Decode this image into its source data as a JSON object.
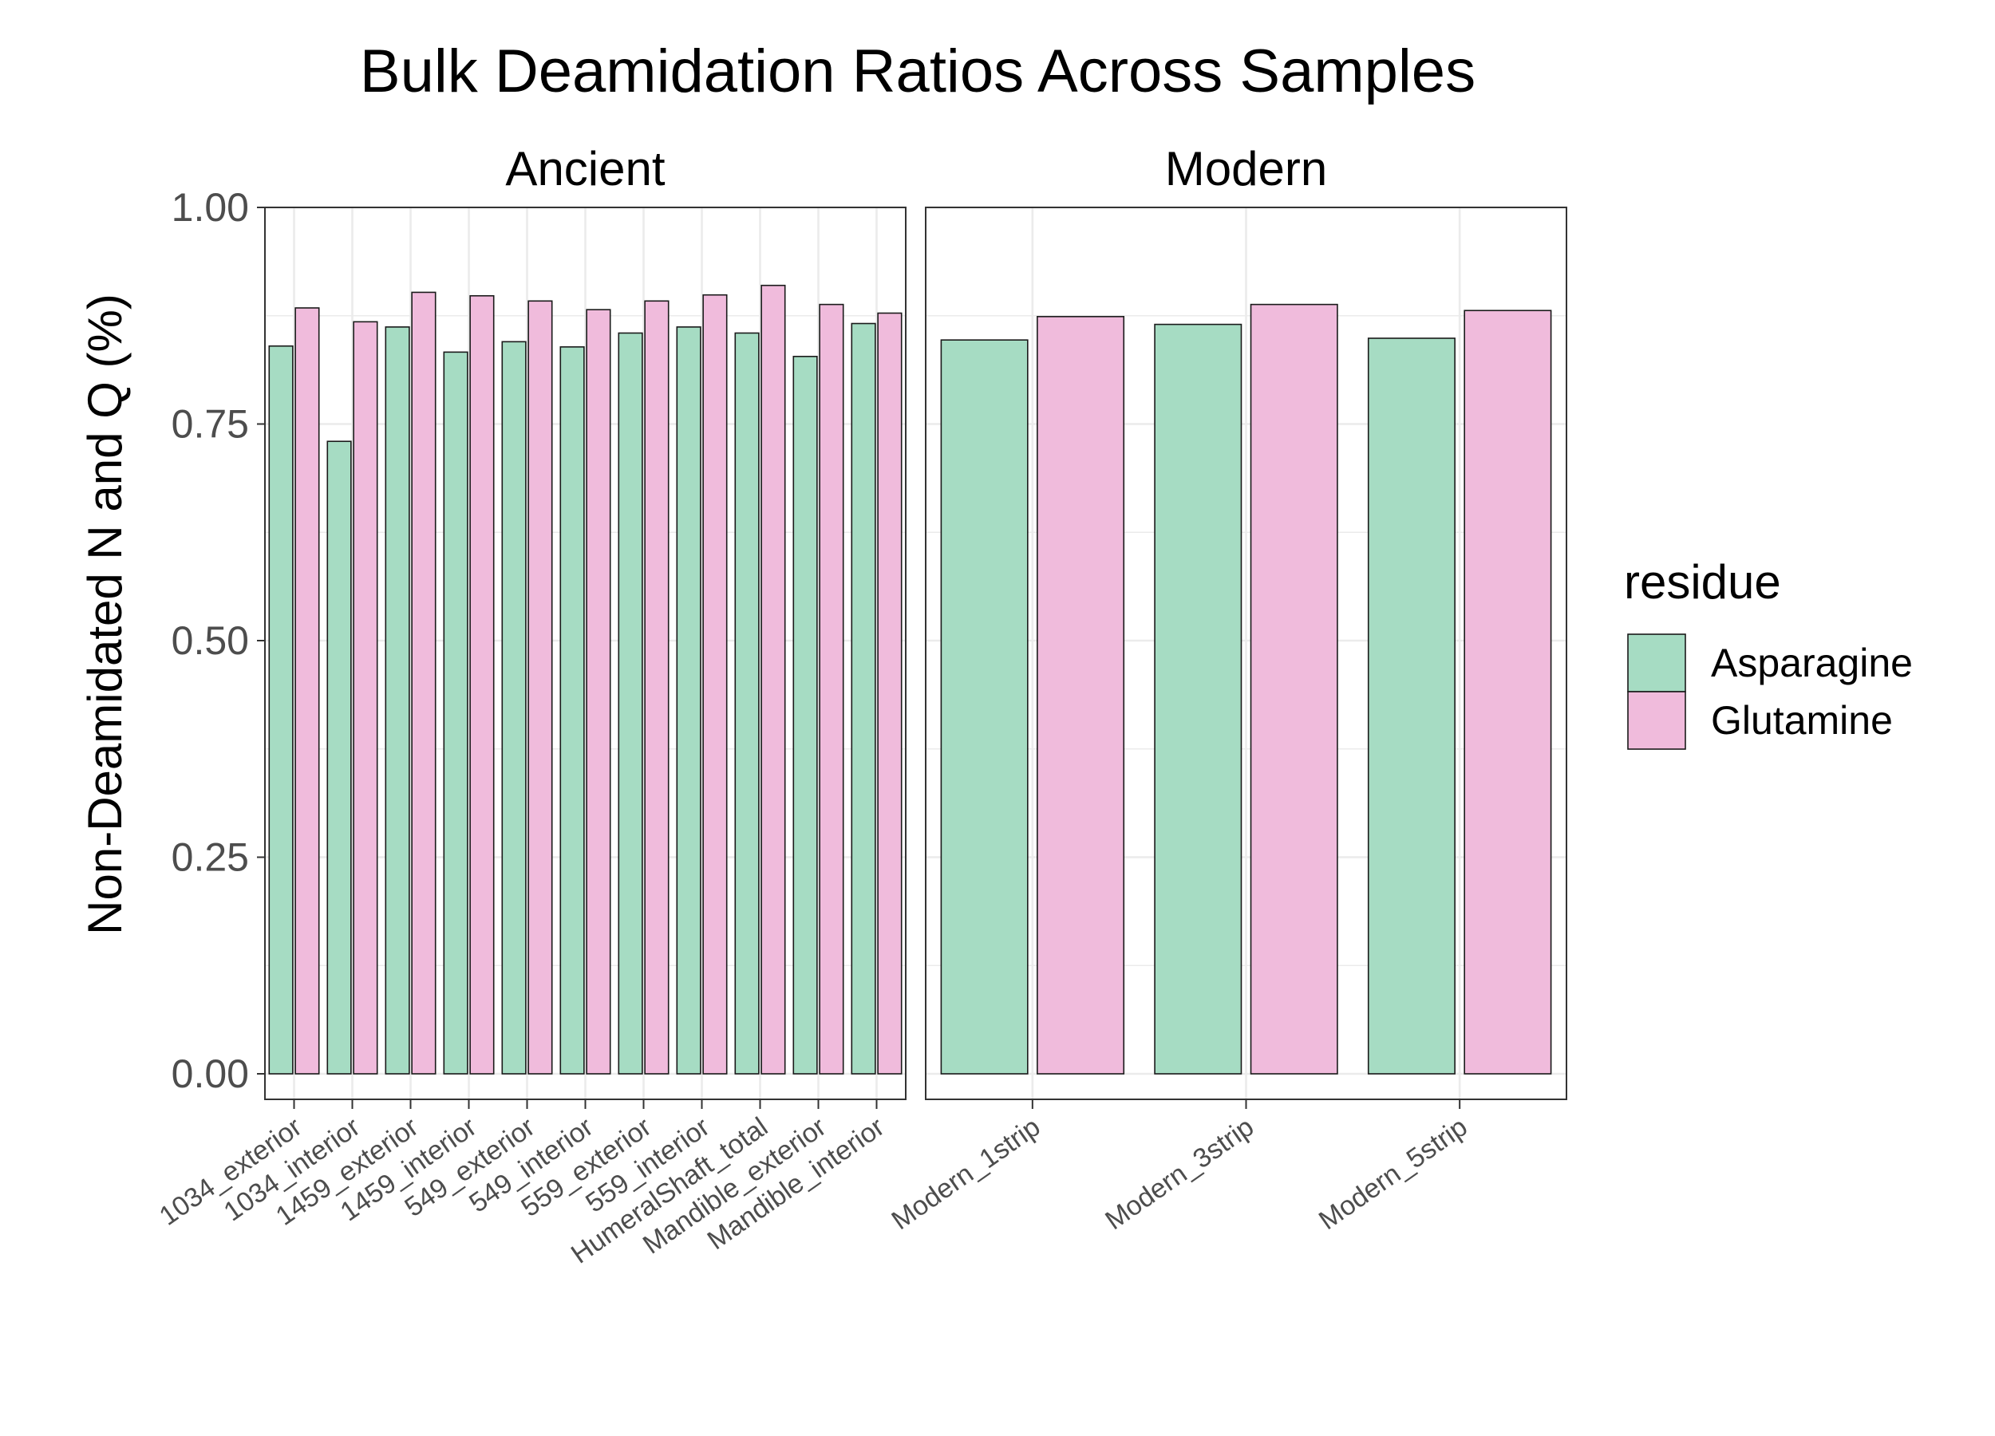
{
  "chart_data": {
    "type": "bar",
    "title": "Bulk Deamidation Ratios Across Samples",
    "ylabel": "Non-Deamidated N and Q (%)",
    "xlabel": "",
    "ylim": [
      0,
      1
    ],
    "yticks": [
      "0.00",
      "0.25",
      "0.50",
      "0.75",
      "1.00"
    ],
    "grid": true,
    "legend": {
      "title": "residue",
      "position": "right",
      "entries": [
        {
          "name": "Asparagine",
          "color": "#a6dcc3"
        },
        {
          "name": "Glutamine",
          "color": "#f0bbdc"
        }
      ]
    },
    "facets": [
      {
        "name": "Ancient",
        "categories": [
          "1034_exterior",
          "1034_interior",
          "1459_exterior",
          "1459_interior",
          "549_exterior",
          "549_interior",
          "559_exterior",
          "559_interior",
          "HumeralShaft_total",
          "Mandible_exterior",
          "Mandible_interior"
        ],
        "series": [
          {
            "name": "Asparagine",
            "values": [
              0.84,
              0.73,
              0.862,
              0.833,
              0.845,
              0.839,
              0.855,
              0.862,
              0.855,
              0.828,
              0.866
            ]
          },
          {
            "name": "Glutamine",
            "values": [
              0.884,
              0.868,
              0.902,
              0.898,
              0.892,
              0.882,
              0.892,
              0.899,
              0.91,
              0.888,
              0.878
            ]
          }
        ]
      },
      {
        "name": "Modern",
        "categories": [
          "Modern_1strip",
          "Modern_3strip",
          "Modern_5strip"
        ],
        "series": [
          {
            "name": "Asparagine",
            "values": [
              0.847,
              0.865,
              0.849
            ]
          },
          {
            "name": "Glutamine",
            "values": [
              0.874,
              0.888,
              0.881
            ]
          }
        ]
      }
    ]
  }
}
